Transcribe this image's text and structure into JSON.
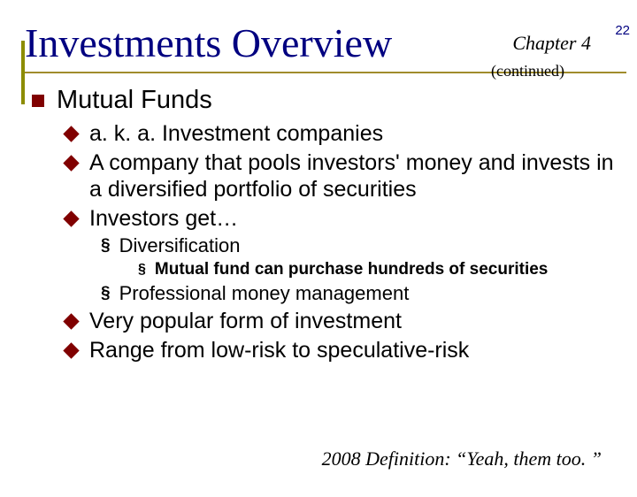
{
  "page_number": "22",
  "title": "Investments Overview",
  "chapter": "Chapter 4",
  "continued": "(continued)",
  "section": {
    "heading": "Mutual Funds",
    "bullets": [
      "a. k. a. Investment companies",
      "A company that pools investors' money and invests in a diversified portfolio of securities",
      "Investors get…"
    ],
    "sub1": {
      "label": "Diversification",
      "detail": "Mutual fund can purchase hundreds of securities"
    },
    "sub2": "Professional money management",
    "bullets_after": [
      "Very popular form of investment",
      "Range from low-risk to speculative-risk"
    ]
  },
  "footer": "2008 Definition: “Yeah, them too. ”",
  "colors": {
    "title_color": "#000080",
    "bullet_color": "#800000",
    "underline_color": "#a08c2c",
    "background": "#ffffff"
  }
}
